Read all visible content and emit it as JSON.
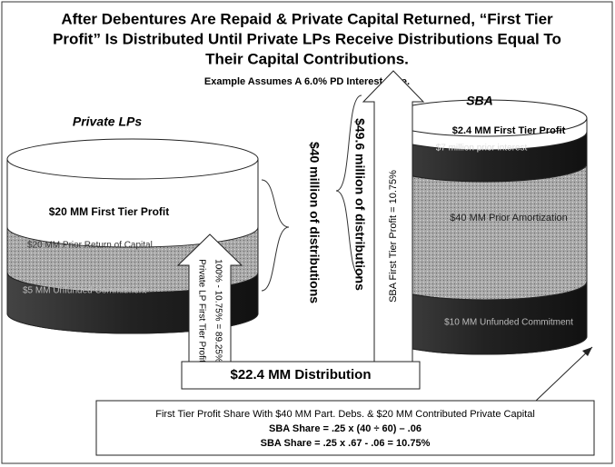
{
  "title": "After Debentures Are Repaid & Private Capital Returned, “First Tier Profit” Is Distributed Until Private LPs Receive Distributions Equal To Their Capital Contributions.",
  "title_lines": [
    "After Debentures Are Repaid & Private Capital Returned, “First Tier",
    "Profit” Is Distributed Until Private LPs Receive Distributions Equal To",
    "Their Capital Contributions."
  ],
  "subtitle": "Example Assumes A 6.0% PD Interest Rate.",
  "private_lps": {
    "label": "Private LPs",
    "segments": [
      "$20 MM First Tier Profit",
      "$20 MM Prior Return of Capital",
      "$5 MM Unfunded Commitment"
    ],
    "distributions": "$40 million of distributions",
    "arrow": [
      "Private LP First Tier Profit",
      "100% - 10.75% = 89.25%"
    ]
  },
  "sba": {
    "label": "SBA",
    "segments": [
      "$2.4 MM First Tier Profit",
      "$7 million prior interest",
      "$40 MM Prior Amortization",
      "$10 MM Unfunded Commitment"
    ],
    "distributions": "$49.6 million of distributions",
    "arrow": "SBA First Tier Profit = 10.75%"
  },
  "distribution": "$22.4 MM Distribution",
  "note": [
    "First Tier Profit Share With $40 MM Part. Debs. & $20 MM Contributed Private Capital",
    "SBA Share = .25 x (40 ÷ 60) – .06",
    "SBA Share = .25 x .67 - .06 = 10.75%"
  ]
}
